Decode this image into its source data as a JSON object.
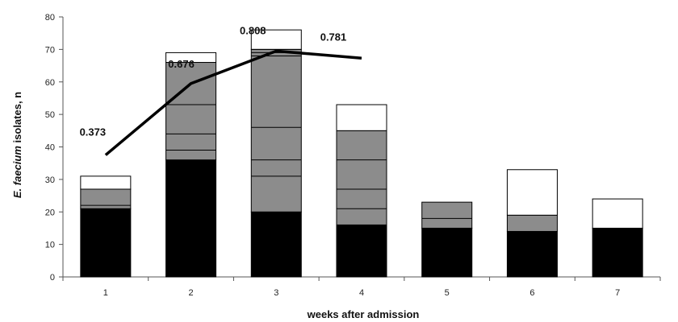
{
  "chart_data": {
    "type": "bar",
    "stacked": true,
    "title": "",
    "xlabel": "weeks after admission",
    "ylabel_italic": "E. faecium",
    "ylabel_rest": " isolates, n",
    "ylim": [
      0,
      80
    ],
    "yticks": [
      "0",
      "10",
      "20",
      "30",
      "40",
      "50",
      "60",
      "70",
      "80"
    ],
    "categories": [
      "1",
      "2",
      "3",
      "4",
      "5",
      "6",
      "7"
    ],
    "series": [
      {
        "fill": "#000000",
        "values": [
          21,
          36,
          20,
          16,
          15,
          14,
          15
        ]
      },
      {
        "fill": "#8c8c8c",
        "values": [
          6,
          30,
          50,
          29,
          8,
          5,
          0
        ]
      },
      {
        "fill": "#ffffff",
        "values": [
          4,
          3,
          6,
          8,
          0,
          14,
          9
        ]
      }
    ],
    "grey_dividers": [
      [
        22
      ],
      [
        39,
        44,
        53,
        66
      ],
      [
        31,
        36,
        46,
        68,
        69,
        70
      ],
      [
        21,
        27,
        36
      ],
      [
        18
      ],
      [],
      []
    ],
    "line": {
      "categories": [
        "1",
        "2",
        "3",
        "4"
      ],
      "values": [
        37.5,
        59.5,
        69.5,
        67.3
      ],
      "labels": [
        "0.373",
        "0.676",
        "0.808",
        "0.781"
      ],
      "color": "#000000"
    },
    "grid": false,
    "legend": "none"
  }
}
